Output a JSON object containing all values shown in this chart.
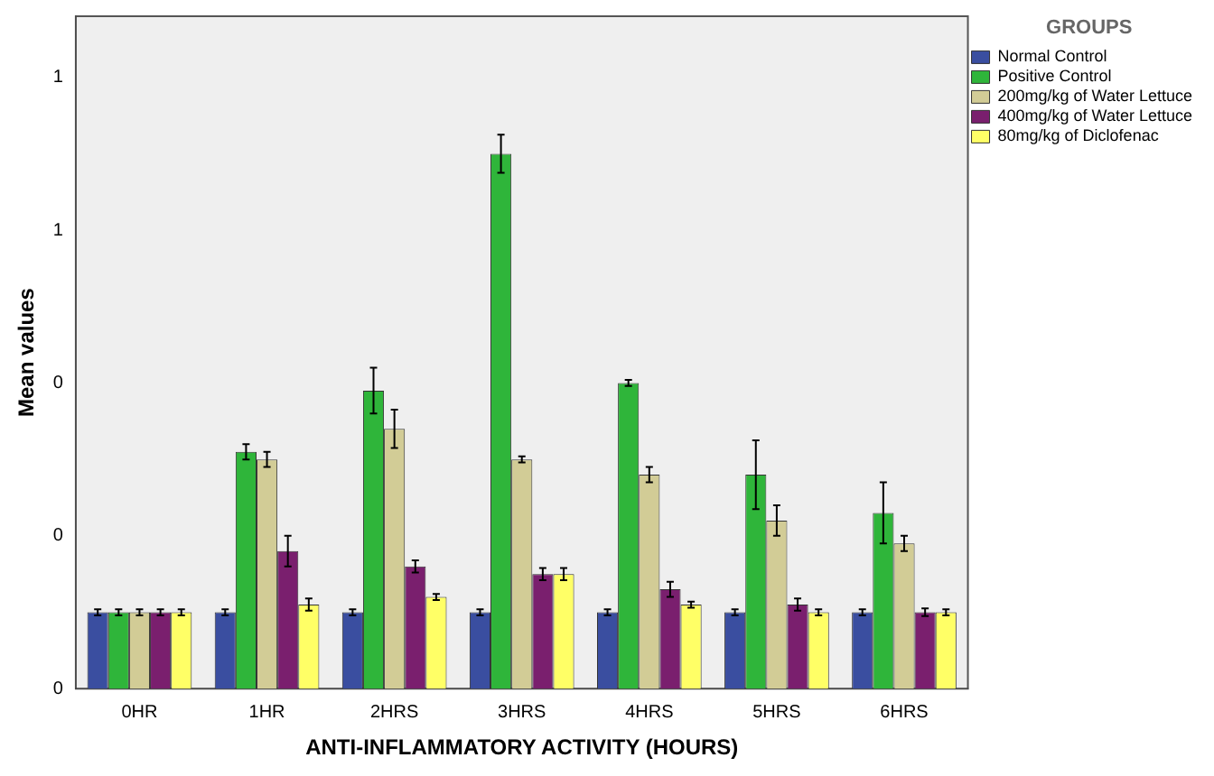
{
  "chart_data": {
    "type": "bar",
    "xlabel": "ANTI-INFLAMMATORY ACTIVITY (HOURS)",
    "ylabel": "Mean values",
    "legend_title": "GROUPS",
    "legend": "right",
    "grid": false,
    "categories": [
      "0HR",
      "1HR",
      "2HRS",
      "3HRS",
      "4HRS",
      "5HRS",
      "6HRS"
    ],
    "ylim": [
      0,
      0.88
    ],
    "yticks": [
      {
        "value": 0,
        "label": "0"
      },
      {
        "value": 0.2,
        "label": "0"
      },
      {
        "value": 0.4,
        "label": "0"
      },
      {
        "value": 0.6,
        "label": "1"
      },
      {
        "value": 0.8,
        "label": "1"
      }
    ],
    "series": [
      {
        "name": "Normal Control",
        "color": "#3a4ea0",
        "values": [
          0.1,
          0.1,
          0.1,
          0.1,
          0.1,
          0.1,
          0.1
        ],
        "errors": [
          0.004,
          0.004,
          0.004,
          0.004,
          0.004,
          0.004,
          0.004
        ]
      },
      {
        "name": "Positive Control",
        "color": "#2fb53a",
        "values": [
          0.1,
          0.31,
          0.39,
          0.7,
          0.4,
          0.28,
          0.23
        ],
        "errors": [
          0.004,
          0.01,
          0.03,
          0.025,
          0.004,
          0.045,
          0.04
        ]
      },
      {
        "name": "200mg/kg of Water Lettuce",
        "color": "#d2cc96",
        "values": [
          0.1,
          0.3,
          0.34,
          0.3,
          0.28,
          0.22,
          0.19
        ],
        "errors": [
          0.004,
          0.01,
          0.025,
          0.004,
          0.01,
          0.02,
          0.01
        ]
      },
      {
        "name": "400mg/kg of Water Lettuce",
        "color": "#7a1f6e",
        "values": [
          0.1,
          0.18,
          0.16,
          0.15,
          0.13,
          0.11,
          0.1
        ],
        "errors": [
          0.004,
          0.02,
          0.008,
          0.008,
          0.01,
          0.008,
          0.005
        ]
      },
      {
        "name": "80mg/kg of Diclofenac",
        "color": "#ffff66",
        "values": [
          0.1,
          0.11,
          0.12,
          0.15,
          0.11,
          0.1,
          0.1
        ],
        "errors": [
          0.004,
          0.008,
          0.004,
          0.008,
          0.004,
          0.004,
          0.004
        ]
      }
    ]
  }
}
